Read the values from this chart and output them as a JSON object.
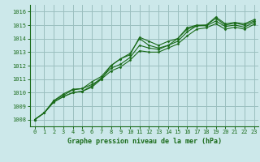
{
  "bg_color": "#cce8ea",
  "grid_color": "#9bbfbf",
  "line_color": "#1a6b1a",
  "marker_color": "#1a6b1a",
  "title": "Graphe pression niveau de la mer (hPa)",
  "title_color": "#1a6b1a",
  "xlim": [
    -0.5,
    23.5
  ],
  "ylim": [
    1007.5,
    1016.5
  ],
  "yticks": [
    1008,
    1009,
    1010,
    1011,
    1012,
    1013,
    1014,
    1015,
    1016
  ],
  "xticks": [
    0,
    1,
    2,
    3,
    4,
    5,
    6,
    7,
    8,
    9,
    10,
    11,
    12,
    13,
    14,
    15,
    16,
    17,
    18,
    19,
    20,
    21,
    22,
    23
  ],
  "series": [
    [
      1008.0,
      1008.5,
      1009.4,
      1009.8,
      1010.2,
      1010.3,
      1010.6,
      1011.0,
      1012.0,
      1012.5,
      1012.8,
      1014.1,
      1013.8,
      1013.5,
      1013.8,
      1014.0,
      1014.8,
      1015.0,
      1015.0,
      1015.6,
      1015.1,
      1015.2,
      1015.1,
      1015.4
    ],
    [
      1008.0,
      1008.5,
      1009.4,
      1009.9,
      1010.25,
      1010.3,
      1010.8,
      1011.2,
      1012.0,
      1012.5,
      1012.9,
      1014.0,
      1013.5,
      1013.3,
      1013.5,
      1014.0,
      1014.7,
      1014.95,
      1015.0,
      1015.5,
      1015.0,
      1015.15,
      1015.0,
      1015.3
    ],
    [
      1008.0,
      1008.5,
      1009.3,
      1009.7,
      1010.0,
      1010.1,
      1010.5,
      1011.1,
      1011.8,
      1012.1,
      1012.6,
      1013.5,
      1013.3,
      1013.2,
      1013.5,
      1013.8,
      1014.5,
      1014.95,
      1014.95,
      1015.3,
      1014.9,
      1015.0,
      1014.85,
      1015.2
    ],
    [
      1008.0,
      1008.5,
      1009.3,
      1009.7,
      1010.0,
      1010.1,
      1010.4,
      1011.0,
      1011.6,
      1011.9,
      1012.4,
      1013.1,
      1013.0,
      1013.0,
      1013.3,
      1013.6,
      1014.2,
      1014.7,
      1014.8,
      1015.1,
      1014.7,
      1014.85,
      1014.7,
      1015.05
    ]
  ]
}
